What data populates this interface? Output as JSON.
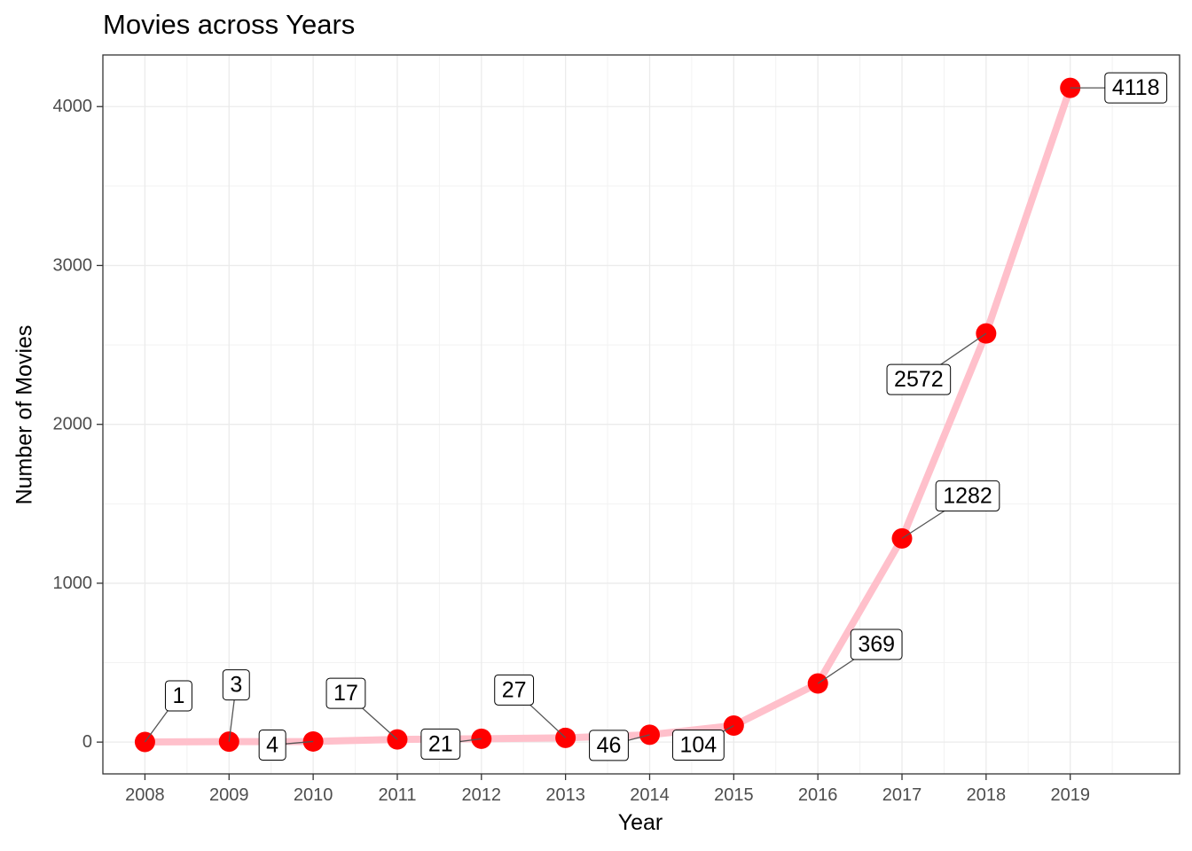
{
  "chart_data": {
    "type": "line",
    "title": "Movies across Years",
    "xlabel": "Year",
    "ylabel": "Number of Movies",
    "x": [
      2008,
      2009,
      2010,
      2011,
      2012,
      2013,
      2014,
      2015,
      2016,
      2017,
      2018,
      2019
    ],
    "values": [
      1,
      3,
      4,
      17,
      21,
      27,
      46,
      104,
      369,
      1282,
      2572,
      4118
    ],
    "data_labels": [
      "1",
      "3",
      "4",
      "17",
      "21",
      "27",
      "46",
      "104",
      "369",
      "1282",
      "2572",
      "4118"
    ],
    "x_tick_labels": [
      "2008",
      "2009",
      "2010",
      "2011",
      "2012",
      "2013",
      "2014",
      "2015",
      "2016",
      "2017",
      "2018",
      "2019"
    ],
    "y_ticks": [
      0,
      1000,
      2000,
      3000,
      4000
    ],
    "y_tick_labels": [
      "0",
      "1000",
      "2000",
      "3000",
      "4000"
    ],
    "xlim": [
      2007.5,
      2020.3
    ],
    "ylim": [
      -200,
      4325
    ],
    "grid": true,
    "line_color": "#ffc0cb",
    "point_color": "#ff0000"
  }
}
